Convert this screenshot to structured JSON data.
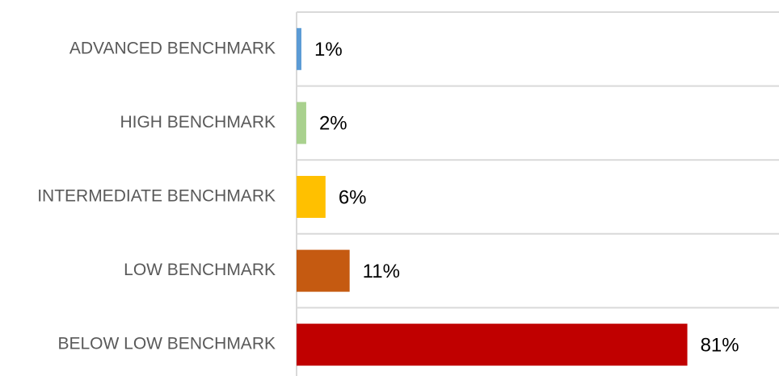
{
  "chart_data": {
    "type": "hbar",
    "categories": [
      "ADVANCED BENCHMARK",
      "HIGH BENCHMARK",
      "INTERMEDIATE BENCHMARK",
      "LOW BENCHMARK",
      "BELOW LOW BENCHMARK"
    ],
    "values": [
      1,
      2,
      6,
      11,
      81
    ],
    "value_labels": [
      "1%",
      "2%",
      "6%",
      "11%",
      "81%"
    ],
    "colors": [
      "#5b9bd5",
      "#a9d18e",
      "#ffc000",
      "#c55a11",
      "#c00000"
    ],
    "xlim": [
      0,
      100
    ],
    "grid": true
  }
}
